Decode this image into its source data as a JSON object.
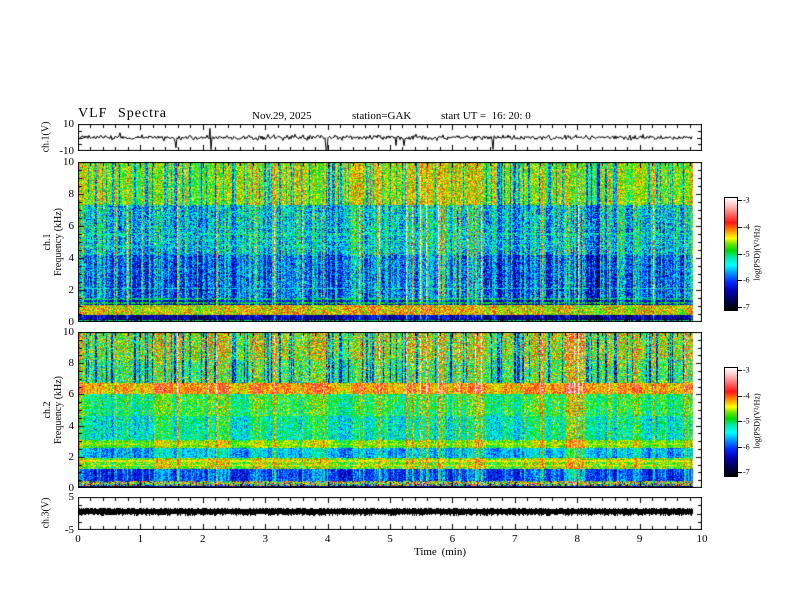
{
  "header": {
    "title": "VLF Spectra",
    "date": "Nov.29, 2025",
    "station": "station=GAK",
    "start_ut": "start UT =  16: 20: 0"
  },
  "xaxis": {
    "label": "Time (min)",
    "tick_labels": [
      "0",
      "1",
      "2",
      "3",
      "4",
      "5",
      "6",
      "7",
      "8",
      "9",
      "10"
    ],
    "minor_ticks_per_major": 5
  },
  "panels": {
    "ch1_wave": {
      "ylabel": "ch.1(V)",
      "ytick_top": "10",
      "ytick_bottom": "-10"
    },
    "ch1_spec": {
      "ylabel_channel": "ch.1",
      "ylabel_axis": "Frequency (kHz)",
      "ytick_labels": [
        "10",
        "8",
        "6",
        "4",
        "2",
        "0"
      ]
    },
    "ch2_spec": {
      "ylabel_channel": "ch.2",
      "ylabel_axis": "Frequency (kHz)",
      "ytick_labels": [
        "10",
        "8",
        "6",
        "4",
        "2",
        "0"
      ]
    },
    "ch3_wave": {
      "ylabel": "ch.3(V)",
      "ytick_top": "5",
      "ytick_bottom": "-5"
    }
  },
  "colorbar": {
    "label": "log(PSD)(V²/Hz)",
    "tick_labels": [
      "-3",
      "-4",
      "-5",
      "-6",
      "-7"
    ]
  },
  "chart_data": [
    {
      "type": "line",
      "name": "ch.1 voltage waveform",
      "xlabel": "Time (min)",
      "xlim": [
        0,
        10
      ],
      "x_data_end_min": 9.85,
      "ylabel": "ch.1(V)",
      "ylim": [
        -10,
        10
      ],
      "signal": {
        "baseline_V": 0,
        "noise_sigma_V": 0.9,
        "spike_down_prob": 0.012,
        "spike_down_max_V": -9,
        "spike_up_prob": 0.006,
        "spike_up_max_V": 5
      }
    },
    {
      "type": "heatmap",
      "name": "ch.1 VLF spectrogram",
      "xlabel": "Time (min)",
      "xlim": [
        0,
        10
      ],
      "x_data_end_min": 9.85,
      "ylabel": "Frequency (kHz)",
      "ylim": [
        0,
        10
      ],
      "zlabel": "log(PSD)(V²/Hz)",
      "zlim": [
        -7,
        -3
      ],
      "colormap": "black-blue-cyan-green-yellow-red-white rainbow",
      "bands": [
        {
          "f": [
            7.3,
            10.01
          ],
          "psd": -4.9,
          "noise": 0.45,
          "streak": 0.8,
          "dark": true
        },
        {
          "f": [
            4.2,
            7.3
          ],
          "psd": -6.05,
          "noise": 0.6,
          "streak": 1.9
        },
        {
          "f": [
            1.35,
            4.2
          ],
          "psd": -6.4,
          "noise": 0.5,
          "streak": 1.9
        },
        {
          "f": [
            1.05,
            1.35
          ],
          "psd": -6.6,
          "noise": 0.3,
          "streak": 1.4
        },
        {
          "f": [
            0.42,
            1.05
          ],
          "psd": -4.55,
          "noise": 0.55,
          "streak": 0.45
        },
        {
          "f": [
            0.18,
            0.42
          ],
          "psd": -6.55,
          "noise": 0.35,
          "streak": 0.6
        },
        {
          "f": [
            0.0,
            0.18
          ],
          "psd": -6.6,
          "noise": 0.3,
          "streak": 0.4
        }
      ],
      "lines": [
        {
          "f": 5.9,
          "psd": -5.2,
          "p": 0.5
        },
        {
          "f": 5.5,
          "psd": -5.2,
          "p": 0.6
        },
        {
          "f": 5.1,
          "psd": -5.3,
          "p": 0.6
        },
        {
          "f": 4.75,
          "psd": -5.5,
          "p": 0.4
        },
        {
          "f": 3.3,
          "psd": -5.8,
          "p": 0.4
        },
        {
          "f": 2.1,
          "psd": -5.3,
          "p": 0.6
        },
        {
          "f": 1.45,
          "psd": -5.0,
          "p": 0.6
        },
        {
          "f": 1.2,
          "psd": -4.9,
          "p": 0.7
        },
        {
          "f": 0.1,
          "psd": -5.0,
          "p": 0.7
        }
      ]
    },
    {
      "type": "heatmap",
      "name": "ch.2 VLF spectrogram",
      "xlabel": "Time (min)",
      "xlim": [
        0,
        10
      ],
      "x_data_end_min": 9.85,
      "ylabel": "Frequency (kHz)",
      "ylim": [
        0,
        10
      ],
      "zlabel": "log(PSD)(V²/Hz)",
      "zlim": [
        -7,
        -3
      ],
      "colormap": "black-blue-cyan-green-yellow-red-white rainbow",
      "bands": [
        {
          "f": [
            8.2,
            10.01
          ],
          "psd": -4.95,
          "noise": 0.7,
          "streak": 1.1,
          "dark": true
        },
        {
          "f": [
            6.7,
            8.2
          ],
          "psd": -5.3,
          "noise": 0.7,
          "streak": 1.2,
          "dark": true
        },
        {
          "f": [
            6.05,
            6.7
          ],
          "psd": -4.45,
          "noise": 0.4,
          "streak": 1.0
        },
        {
          "f": [
            4.6,
            6.05
          ],
          "psd": -5.2,
          "noise": 0.5,
          "streak": 0.9
        },
        {
          "f": [
            3.05,
            4.6
          ],
          "psd": -5.5,
          "noise": 0.45,
          "streak": 1.0
        },
        {
          "f": [
            2.55,
            3.05
          ],
          "psd": -4.85,
          "noise": 0.35,
          "streak": 0.7
        },
        {
          "f": [
            1.95,
            2.55
          ],
          "psd": -5.8,
          "noise": 0.35,
          "streak": 0.9
        },
        {
          "f": [
            1.25,
            1.95
          ],
          "psd": -4.8,
          "noise": 0.5,
          "streak": 0.6
        },
        {
          "f": [
            0.45,
            1.25
          ],
          "psd": -6.2,
          "noise": 0.35,
          "streak": 1.0
        },
        {
          "f": [
            0.14,
            0.45
          ],
          "psd": -5.0,
          "noise": 1.5,
          "streak": 0.2
        },
        {
          "f": [
            0.0,
            0.14
          ],
          "psd": -6.5,
          "noise": 0.3,
          "streak": 0.0
        }
      ],
      "lines": [
        {
          "f": 6.35,
          "psd": -4.3,
          "p": 0.6
        },
        {
          "f": 5.55,
          "psd": -4.9,
          "p": 0.45
        },
        {
          "f": 5.1,
          "psd": -5.0,
          "p": 0.4
        },
        {
          "f": 4.2,
          "psd": -5.1,
          "p": 0.4
        },
        {
          "f": 3.6,
          "psd": -5.15,
          "p": 0.4
        },
        {
          "f": 2.8,
          "psd": -4.6,
          "p": 0.6
        },
        {
          "f": 1.75,
          "psd": -4.4,
          "p": 0.8
        },
        {
          "f": 1.45,
          "psd": -4.45,
          "p": 0.8
        },
        {
          "f": 0.3,
          "psd": -4.6,
          "p": 0.5
        }
      ]
    },
    {
      "type": "line",
      "name": "ch.3 voltage waveform",
      "xlabel": "Time (min)",
      "xlim": [
        0,
        10
      ],
      "x_data_end_min": 9.85,
      "ylabel": "ch.3(V)",
      "ylim": [
        -5,
        5
      ],
      "signal": {
        "baseline_V": 0.3,
        "trace_halfwidth_V": 0.9,
        "character": "constant thick flat trace"
      }
    }
  ]
}
